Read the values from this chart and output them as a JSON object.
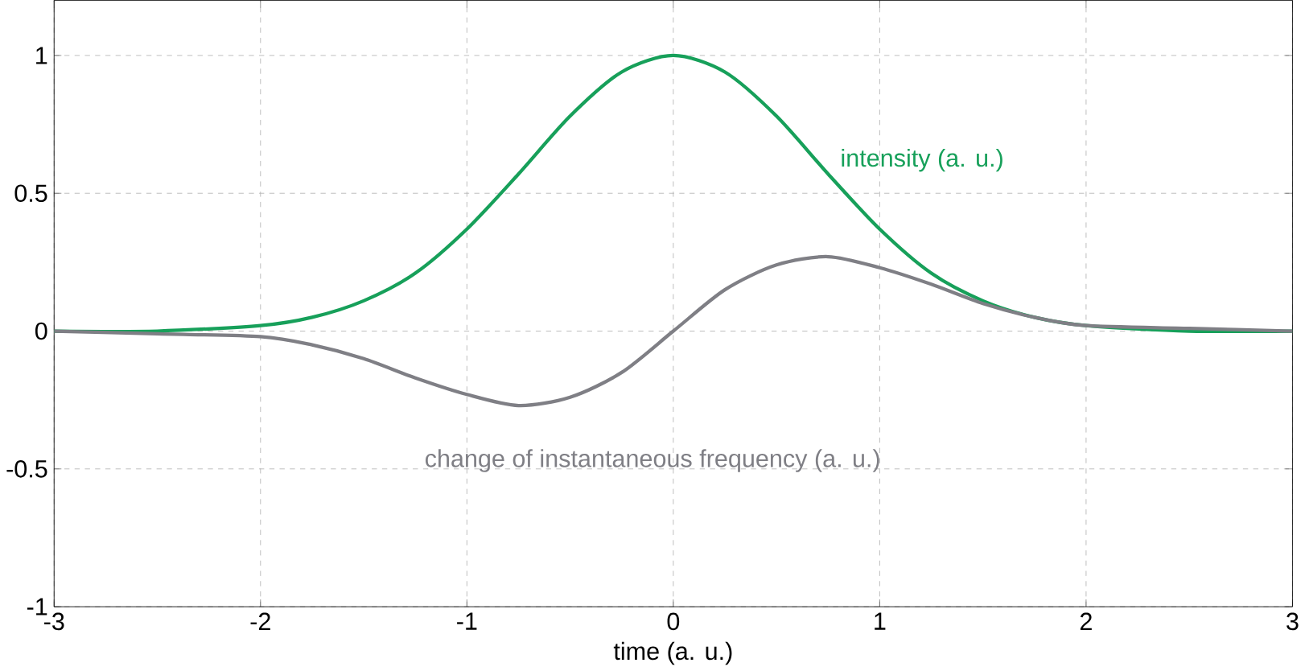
{
  "chart_data": {
    "type": "line",
    "xlabel": "time (a. u.)",
    "xlim": [
      -3,
      3
    ],
    "ylim": [
      -1,
      1.2
    ],
    "xticks": [
      -3,
      -2,
      -1,
      0,
      1,
      2,
      3
    ],
    "yticks": [
      -1,
      -0.5,
      0,
      0.5,
      1
    ],
    "grid": true,
    "line_style": "solid",
    "marker": "none",
    "series": [
      {
        "name": "intensity (a. u.)",
        "color": "#17a05a",
        "x": [
          -3,
          -2.5,
          -2,
          -1.75,
          -1.5,
          -1.25,
          -1,
          -0.75,
          -0.5,
          -0.25,
          0,
          0.25,
          0.5,
          0.75,
          1,
          1.25,
          1.5,
          1.75,
          2,
          2.5,
          3
        ],
        "values": [
          0,
          0,
          0.02,
          0.05,
          0.11,
          0.21,
          0.37,
          0.57,
          0.78,
          0.94,
          1,
          0.94,
          0.78,
          0.57,
          0.37,
          0.21,
          0.11,
          0.05,
          0.02,
          0,
          0
        ]
      },
      {
        "name": "change of instantaneous frequency (a. u.)",
        "color": "#7f7f85",
        "x": [
          -3,
          -2.5,
          -2,
          -1.75,
          -1.5,
          -1.25,
          -1,
          -0.75,
          -0.5,
          -0.25,
          0,
          0.25,
          0.5,
          0.75,
          1,
          1.25,
          1.5,
          1.75,
          2,
          2.5,
          3
        ],
        "values": [
          0,
          -0.01,
          -0.02,
          -0.05,
          -0.1,
          -0.17,
          -0.23,
          -0.27,
          -0.24,
          -0.15,
          0,
          0.15,
          0.24,
          0.27,
          0.23,
          0.17,
          0.1,
          0.05,
          0.02,
          0.01,
          0
        ]
      }
    ]
  }
}
